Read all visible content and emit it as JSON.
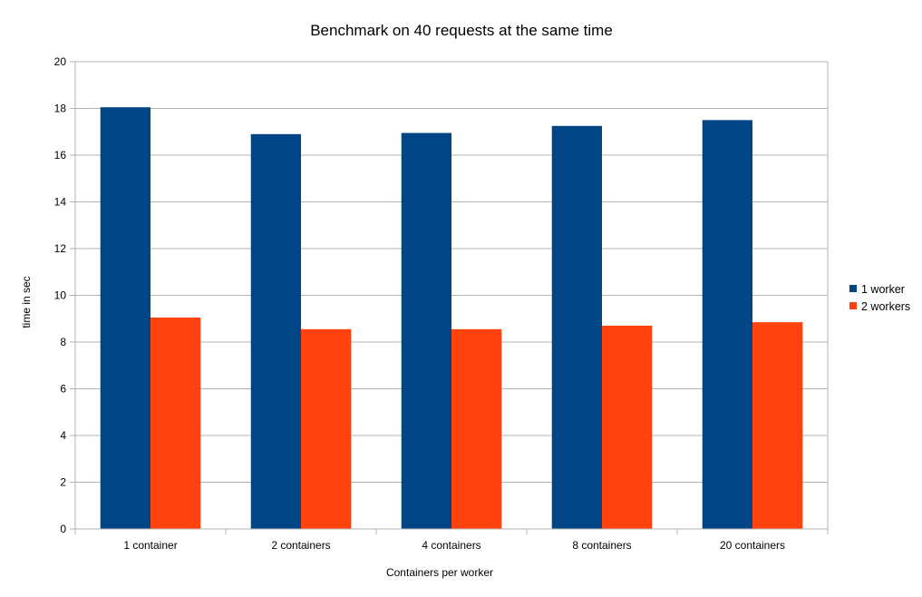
{
  "chart_data": {
    "type": "bar",
    "title": "Benchmark on 40 requests at the same time",
    "xlabel": "Containers per worker",
    "ylabel": "time in sec",
    "categories": [
      "1 container",
      "2 containers",
      "4 containers",
      "8 containers",
      "20 containers"
    ],
    "series": [
      {
        "name": "1 worker",
        "color": "#004586",
        "values": [
          18.05,
          16.9,
          16.95,
          17.25,
          17.5
        ]
      },
      {
        "name": "2 workers",
        "color": "#ff420e",
        "values": [
          9.05,
          8.55,
          8.55,
          8.7,
          8.85
        ]
      }
    ],
    "ylim": [
      0,
      20
    ],
    "yticks": [
      0,
      2,
      4,
      6,
      8,
      10,
      12,
      14,
      16,
      18,
      20
    ],
    "grid": true,
    "legend": "right"
  }
}
